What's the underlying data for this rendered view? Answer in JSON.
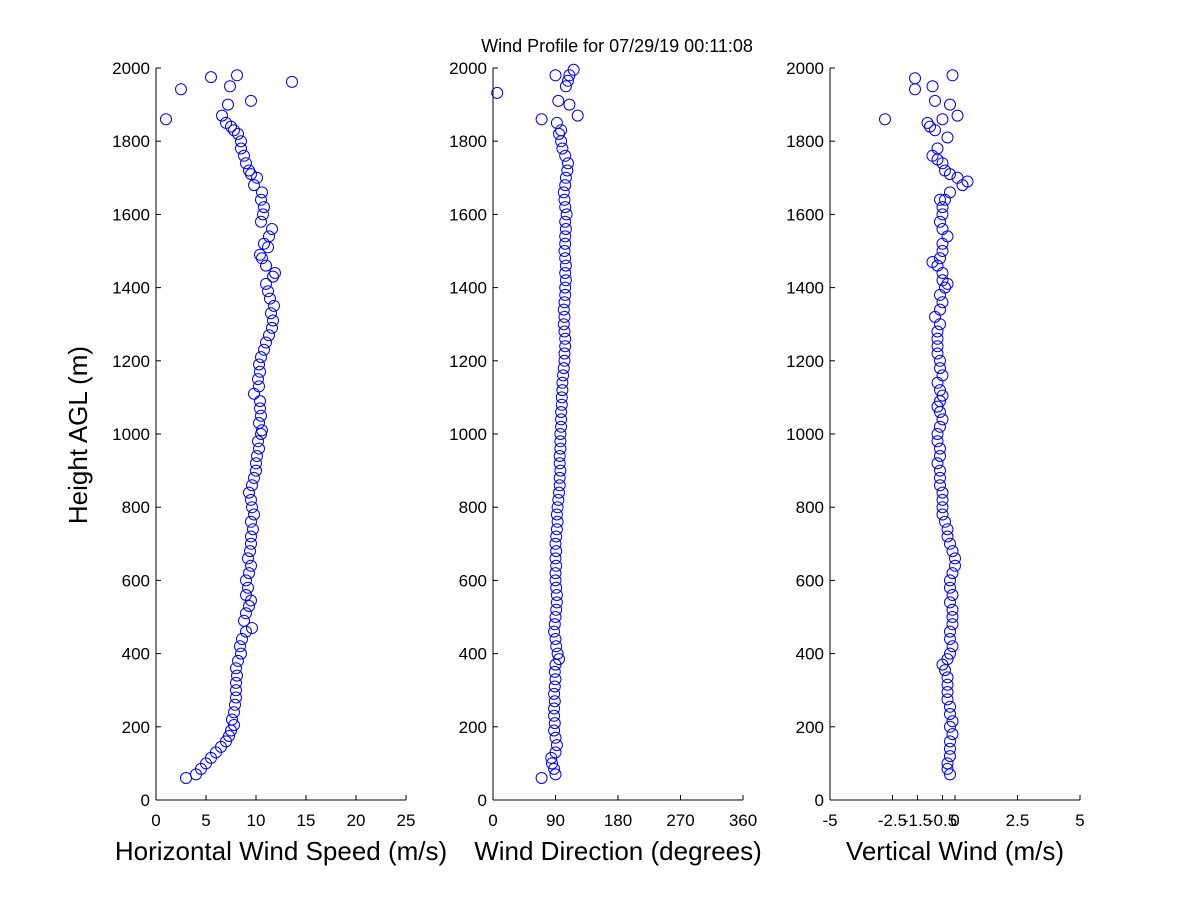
{
  "figure": {
    "title": "Wind Profile for  07/29/19 00:11:08",
    "ylabel": "Height AGL (m)"
  },
  "chart_data": [
    {
      "type": "scatter",
      "xlabel": "Horizontal Wind Speed (m/s)",
      "ylabel": "Height AGL (m)",
      "xlim": [
        0,
        25
      ],
      "ylim": [
        0,
        2000
      ],
      "xticks": [
        "0",
        "5",
        "10",
        "15",
        "20",
        "25"
      ],
      "yticks": [
        "0",
        "200",
        "400",
        "600",
        "800",
        "1000",
        "1200",
        "1400",
        "1600",
        "1800",
        "2000"
      ],
      "marker_color": "#0000ff",
      "points": [
        [
          3.0,
          60
        ],
        [
          4.0,
          70
        ],
        [
          4.5,
          85
        ],
        [
          5.0,
          100
        ],
        [
          5.5,
          115
        ],
        [
          6.0,
          130
        ],
        [
          6.5,
          145
        ],
        [
          7.0,
          160
        ],
        [
          7.3,
          175
        ],
        [
          7.5,
          190
        ],
        [
          7.8,
          205
        ],
        [
          7.6,
          220
        ],
        [
          7.8,
          240
        ],
        [
          7.9,
          260
        ],
        [
          8.0,
          280
        ],
        [
          8.0,
          300
        ],
        [
          8.0,
          320
        ],
        [
          8.1,
          340
        ],
        [
          8.0,
          360
        ],
        [
          8.2,
          380
        ],
        [
          8.5,
          400
        ],
        [
          8.4,
          420
        ],
        [
          8.6,
          440
        ],
        [
          9.0,
          460
        ],
        [
          9.6,
          470
        ],
        [
          8.8,
          490
        ],
        [
          9.0,
          510
        ],
        [
          9.3,
          530
        ],
        [
          9.5,
          545
        ],
        [
          9.0,
          560
        ],
        [
          9.2,
          580
        ],
        [
          9.0,
          600
        ],
        [
          9.3,
          620
        ],
        [
          9.5,
          640
        ],
        [
          9.2,
          660
        ],
        [
          9.4,
          680
        ],
        [
          9.5,
          700
        ],
        [
          9.5,
          720
        ],
        [
          9.7,
          740
        ],
        [
          9.5,
          760
        ],
        [
          9.8,
          780
        ],
        [
          9.6,
          800
        ],
        [
          9.5,
          820
        ],
        [
          9.3,
          840
        ],
        [
          9.6,
          860
        ],
        [
          9.8,
          880
        ],
        [
          10.0,
          900
        ],
        [
          10.0,
          920
        ],
        [
          10.1,
          940
        ],
        [
          10.3,
          960
        ],
        [
          10.2,
          980
        ],
        [
          10.5,
          1000
        ],
        [
          10.6,
          1010
        ],
        [
          10.3,
          1030
        ],
        [
          10.5,
          1050
        ],
        [
          10.4,
          1070
        ],
        [
          10.4,
          1090
        ],
        [
          9.8,
          1110
        ],
        [
          10.3,
          1130
        ],
        [
          10.2,
          1150
        ],
        [
          10.4,
          1170
        ],
        [
          10.3,
          1190
        ],
        [
          10.5,
          1210
        ],
        [
          10.8,
          1230
        ],
        [
          11.0,
          1250
        ],
        [
          11.3,
          1270
        ],
        [
          11.6,
          1290
        ],
        [
          11.7,
          1310
        ],
        [
          11.5,
          1330
        ],
        [
          11.8,
          1350
        ],
        [
          11.4,
          1370
        ],
        [
          11.2,
          1390
        ],
        [
          11.0,
          1410
        ],
        [
          11.7,
          1430
        ],
        [
          11.9,
          1440
        ],
        [
          11.0,
          1460
        ],
        [
          10.6,
          1480
        ],
        [
          10.4,
          1490
        ],
        [
          11.2,
          1510
        ],
        [
          10.8,
          1520
        ],
        [
          11.3,
          1540
        ],
        [
          11.6,
          1560
        ],
        [
          10.5,
          1580
        ],
        [
          10.7,
          1600
        ],
        [
          10.8,
          1620
        ],
        [
          10.5,
          1640
        ],
        [
          10.6,
          1660
        ],
        [
          9.8,
          1680
        ],
        [
          10.1,
          1700
        ],
        [
          9.5,
          1710
        ],
        [
          9.3,
          1720
        ],
        [
          9.0,
          1740
        ],
        [
          8.8,
          1760
        ],
        [
          8.5,
          1780
        ],
        [
          8.5,
          1800
        ],
        [
          8.2,
          1820
        ],
        [
          7.8,
          1830
        ],
        [
          7.5,
          1840
        ],
        [
          7.0,
          1850
        ],
        [
          6.6,
          1870
        ],
        [
          7.2,
          1900
        ],
        [
          9.5,
          1910
        ],
        [
          7.4,
          1950
        ],
        [
          8.1,
          1980
        ],
        [
          5.5,
          1975
        ],
        [
          13.6,
          1962
        ],
        [
          2.5,
          1942
        ],
        [
          1.0,
          1860
        ]
      ]
    },
    {
      "type": "scatter",
      "xlabel": "Wind Direction (degrees)",
      "ylabel": "",
      "xlim": [
        0,
        360
      ],
      "ylim": [
        0,
        2000
      ],
      "xticks": [
        "0",
        "90",
        "180",
        "270",
        "360"
      ],
      "yticks": [
        "0",
        "200",
        "400",
        "600",
        "800",
        "1000",
        "1200",
        "1400",
        "1600",
        "1800",
        "2000"
      ],
      "marker_color": "#0000ff",
      "points": [
        [
          70,
          60
        ],
        [
          90,
          70
        ],
        [
          88,
          85
        ],
        [
          85,
          100
        ],
        [
          84,
          115
        ],
        [
          90,
          130
        ],
        [
          92,
          150
        ],
        [
          90,
          170
        ],
        [
          88,
          190
        ],
        [
          89,
          210
        ],
        [
          88,
          230
        ],
        [
          88,
          250
        ],
        [
          89,
          270
        ],
        [
          88,
          290
        ],
        [
          89,
          310
        ],
        [
          90,
          330
        ],
        [
          89,
          350
        ],
        [
          90,
          370
        ],
        [
          95,
          385
        ],
        [
          93,
          400
        ],
        [
          91,
          420
        ],
        [
          90,
          440
        ],
        [
          88,
          460
        ],
        [
          89,
          480
        ],
        [
          90,
          500
        ],
        [
          91,
          520
        ],
        [
          92,
          540
        ],
        [
          92,
          560
        ],
        [
          91,
          580
        ],
        [
          90,
          600
        ],
        [
          90,
          620
        ],
        [
          91,
          640
        ],
        [
          90,
          660
        ],
        [
          91,
          680
        ],
        [
          90,
          700
        ],
        [
          91,
          720
        ],
        [
          92,
          740
        ],
        [
          93,
          760
        ],
        [
          92,
          780
        ],
        [
          93,
          800
        ],
        [
          94,
          820
        ],
        [
          95,
          840
        ],
        [
          96,
          860
        ],
        [
          96,
          880
        ],
        [
          97,
          900
        ],
        [
          96,
          920
        ],
        [
          96,
          940
        ],
        [
          97,
          960
        ],
        [
          97,
          980
        ],
        [
          97,
          1000
        ],
        [
          98,
          1020
        ],
        [
          98,
          1040
        ],
        [
          98,
          1060
        ],
        [
          99,
          1080
        ],
        [
          99,
          1100
        ],
        [
          100,
          1120
        ],
        [
          100,
          1140
        ],
        [
          101,
          1160
        ],
        [
          102,
          1180
        ],
        [
          103,
          1200
        ],
        [
          103,
          1220
        ],
        [
          104,
          1240
        ],
        [
          104,
          1260
        ],
        [
          103,
          1280
        ],
        [
          102,
          1300
        ],
        [
          103,
          1320
        ],
        [
          102,
          1340
        ],
        [
          103,
          1360
        ],
        [
          104,
          1380
        ],
        [
          104,
          1400
        ],
        [
          105,
          1420
        ],
        [
          104,
          1440
        ],
        [
          105,
          1460
        ],
        [
          104,
          1480
        ],
        [
          103,
          1500
        ],
        [
          104,
          1520
        ],
        [
          104,
          1540
        ],
        [
          105,
          1560
        ],
        [
          104,
          1580
        ],
        [
          106,
          1600
        ],
        [
          104,
          1620
        ],
        [
          103,
          1640
        ],
        [
          102,
          1660
        ],
        [
          104,
          1680
        ],
        [
          105,
          1700
        ],
        [
          107,
          1720
        ],
        [
          108,
          1740
        ],
        [
          104,
          1760
        ],
        [
          100,
          1780
        ],
        [
          98,
          1800
        ],
        [
          95,
          1820
        ],
        [
          98,
          1830
        ],
        [
          92,
          1850
        ],
        [
          70,
          1860
        ],
        [
          122,
          1870
        ],
        [
          110,
          1900
        ],
        [
          94,
          1910
        ],
        [
          6,
          1932
        ],
        [
          105,
          1950
        ],
        [
          108,
          1965
        ],
        [
          110,
          1980
        ],
        [
          90,
          1980
        ],
        [
          116,
          1995
        ]
      ]
    },
    {
      "type": "scatter",
      "xlabel": "Vertical Wind (m/s)",
      "ylabel": "",
      "xlim": [
        -5,
        5
      ],
      "xticklim": [
        -5,
        5
      ],
      "ylim": [
        0,
        2000
      ],
      "xticks": [
        "-5",
        "-2.5",
        "-1.5",
        "-0.5",
        "0",
        "2.5",
        "5"
      ],
      "yticks": [
        "0",
        "200",
        "400",
        "600",
        "800",
        "1000",
        "1200",
        "1400",
        "1600",
        "1800",
        "2000"
      ],
      "marker_color": "#0000ff",
      "points": [
        [
          -0.2,
          70
        ],
        [
          -0.3,
          85
        ],
        [
          -0.3,
          100
        ],
        [
          -0.2,
          120
        ],
        [
          -0.2,
          140
        ],
        [
          -0.2,
          160
        ],
        [
          -0.1,
          180
        ],
        [
          -0.2,
          200
        ],
        [
          -0.1,
          215
        ],
        [
          -0.2,
          235
        ],
        [
          -0.2,
          255
        ],
        [
          -0.3,
          275
        ],
        [
          -0.3,
          295
        ],
        [
          -0.3,
          315
        ],
        [
          -0.3,
          335
        ],
        [
          -0.4,
          355
        ],
        [
          -0.5,
          370
        ],
        [
          -0.3,
          385
        ],
        [
          -0.2,
          400
        ],
        [
          -0.1,
          420
        ],
        [
          -0.2,
          440
        ],
        [
          -0.2,
          460
        ],
        [
          -0.1,
          480
        ],
        [
          -0.1,
          500
        ],
        [
          -0.1,
          520
        ],
        [
          -0.2,
          540
        ],
        [
          -0.1,
          560
        ],
        [
          -0.2,
          580
        ],
        [
          -0.2,
          600
        ],
        [
          -0.1,
          620
        ],
        [
          0.0,
          640
        ],
        [
          0.0,
          660
        ],
        [
          -0.1,
          680
        ],
        [
          -0.2,
          700
        ],
        [
          -0.3,
          720
        ],
        [
          -0.3,
          740
        ],
        [
          -0.4,
          760
        ],
        [
          -0.5,
          780
        ],
        [
          -0.5,
          800
        ],
        [
          -0.5,
          820
        ],
        [
          -0.5,
          840
        ],
        [
          -0.6,
          860
        ],
        [
          -0.6,
          880
        ],
        [
          -0.6,
          900
        ],
        [
          -0.7,
          920
        ],
        [
          -0.6,
          940
        ],
        [
          -0.6,
          960
        ],
        [
          -0.7,
          980
        ],
        [
          -0.7,
          1000
        ],
        [
          -0.6,
          1020
        ],
        [
          -0.5,
          1040
        ],
        [
          -0.6,
          1060
        ],
        [
          -0.7,
          1075
        ],
        [
          -0.6,
          1090
        ],
        [
          -0.5,
          1105
        ],
        [
          -0.6,
          1120
        ],
        [
          -0.7,
          1140
        ],
        [
          -0.5,
          1160
        ],
        [
          -0.6,
          1180
        ],
        [
          -0.6,
          1200
        ],
        [
          -0.7,
          1220
        ],
        [
          -0.7,
          1240
        ],
        [
          -0.7,
          1260
        ],
        [
          -0.7,
          1280
        ],
        [
          -0.6,
          1300
        ],
        [
          -0.8,
          1320
        ],
        [
          -0.6,
          1340
        ],
        [
          -0.5,
          1360
        ],
        [
          -0.6,
          1380
        ],
        [
          -0.4,
          1400
        ],
        [
          -0.3,
          1410
        ],
        [
          -0.5,
          1420
        ],
        [
          -0.5,
          1440
        ],
        [
          -0.7,
          1460
        ],
        [
          -0.9,
          1470
        ],
        [
          -0.6,
          1480
        ],
        [
          -0.5,
          1500
        ],
        [
          -0.5,
          1520
        ],
        [
          -0.3,
          1540
        ],
        [
          -0.5,
          1560
        ],
        [
          -0.6,
          1580
        ],
        [
          -0.5,
          1600
        ],
        [
          -0.5,
          1620
        ],
        [
          -0.6,
          1640
        ],
        [
          -0.2,
          1660
        ],
        [
          -0.4,
          1640
        ],
        [
          0.3,
          1680
        ],
        [
          0.5,
          1690
        ],
        [
          0.1,
          1700
        ],
        [
          -0.2,
          1710
        ],
        [
          -0.4,
          1720
        ],
        [
          -0.5,
          1740
        ],
        [
          -0.7,
          1750
        ],
        [
          -0.9,
          1760
        ],
        [
          -0.7,
          1780
        ],
        [
          -0.3,
          1810
        ],
        [
          -0.8,
          1830
        ],
        [
          -1.0,
          1840
        ],
        [
          -1.1,
          1850
        ],
        [
          -2.8,
          1860
        ],
        [
          -0.5,
          1860
        ],
        [
          0.1,
          1870
        ],
        [
          -0.2,
          1900
        ],
        [
          -0.8,
          1910
        ],
        [
          -1.6,
          1942
        ],
        [
          -0.9,
          1950
        ],
        [
          -1.6,
          1972
        ],
        [
          -0.1,
          1980
        ]
      ]
    }
  ]
}
